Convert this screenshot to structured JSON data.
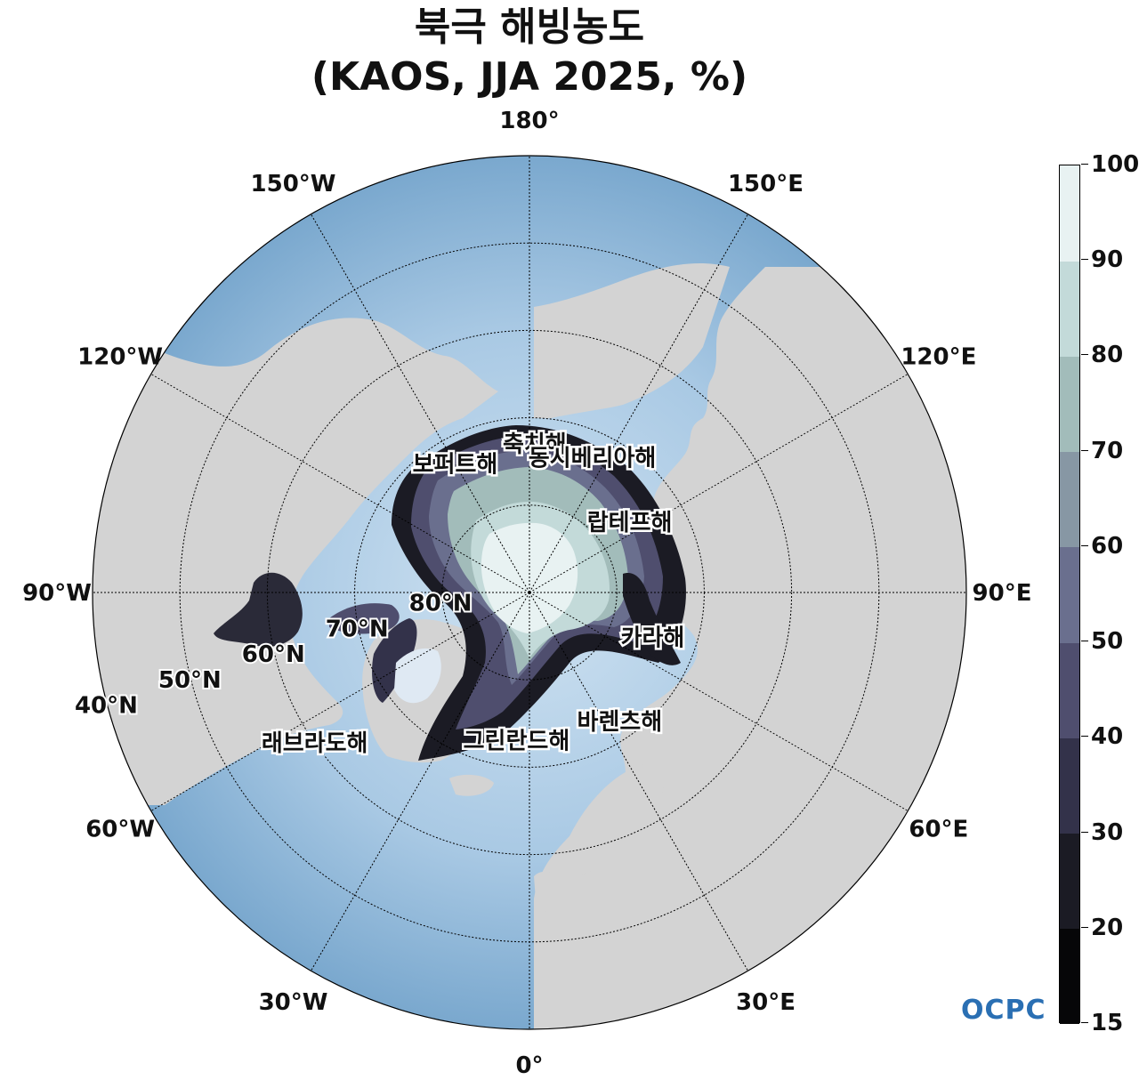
{
  "title": {
    "line1": "북극 해빙농도",
    "line2": "(KAOS, JJA 2025, %)"
  },
  "longitude_labels": [
    {
      "deg": 180,
      "text": "180°"
    },
    {
      "deg": 150,
      "text": "150°E"
    },
    {
      "deg": 120,
      "text": "120°E"
    },
    {
      "deg": 90,
      "text": "90°E"
    },
    {
      "deg": 60,
      "text": "60°E"
    },
    {
      "deg": 30,
      "text": "30°E"
    },
    {
      "deg": 0,
      "text": "0°"
    },
    {
      "deg": -30,
      "text": "30°W"
    },
    {
      "deg": -60,
      "text": "60°W"
    },
    {
      "deg": -90,
      "text": "90°W"
    },
    {
      "deg": -120,
      "text": "120°W"
    },
    {
      "deg": -150,
      "text": "150°W"
    }
  ],
  "latitude_labels": [
    {
      "lat": 40,
      "text": "40°N"
    },
    {
      "lat": 50,
      "text": "50°N"
    },
    {
      "lat": 60,
      "text": "60°N"
    },
    {
      "lat": 70,
      "text": "70°N"
    },
    {
      "lat": 80,
      "text": "80°N"
    }
  ],
  "seas": [
    {
      "name": "축치해",
      "lat": 73,
      "lon": 178
    },
    {
      "name": "동시베리아해",
      "lat": 73,
      "lon": 155
    },
    {
      "name": "보퍼트해",
      "lat": 73,
      "lon": -150
    },
    {
      "name": "랍테프해",
      "lat": 76,
      "lon": 125
    },
    {
      "name": "카라해",
      "lat": 75,
      "lon": 70
    },
    {
      "name": "바렌츠해",
      "lat": 72,
      "lon": 35
    },
    {
      "name": "그린란드해",
      "lat": 73,
      "lon": -5
    },
    {
      "name": "래브라도해",
      "lat": 60,
      "lon": -55
    }
  ],
  "colorbar": {
    "ticks": [
      "15",
      "20",
      "30",
      "40",
      "50",
      "60",
      "70",
      "80",
      "90",
      "100"
    ],
    "colors": [
      "#060608",
      "#1b1b24",
      "#33324a",
      "#4f4e6e",
      "#6a6f8e",
      "#8797a4",
      "#a2bcba",
      "#c3dad9",
      "#e8f2f2"
    ]
  },
  "colors": {
    "ocean": "#7aa8ce",
    "ocean_light": "#c9dff0",
    "land": "#d3d3d3",
    "ice_core": "#e8f2f2"
  },
  "logo": "OCPC"
}
